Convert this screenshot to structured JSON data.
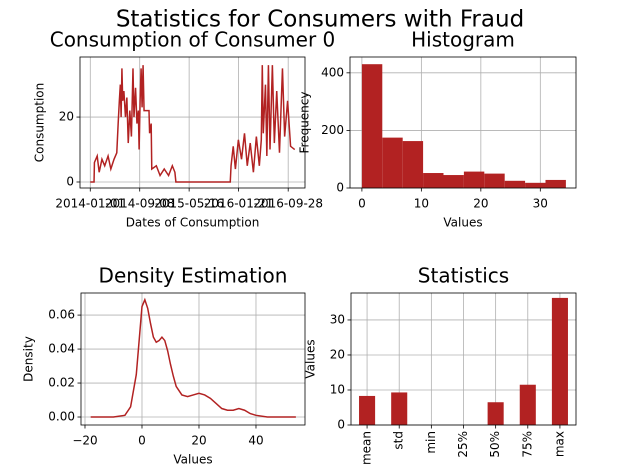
{
  "title": "Statistics for Consumers with Fraud",
  "chart_data": [
    {
      "type": "line",
      "title": "Consumption of Consumer 0",
      "x_label": "Dates of Consumption",
      "y_label": "Consumption",
      "color": "#b22222",
      "grid": true,
      "x": [
        "2014-01-01",
        "2014-01-20",
        "2014-01-22",
        "2014-02-05",
        "2014-02-15",
        "2014-03-01",
        "2014-03-15",
        "2014-04-01",
        "2014-04-15",
        "2014-05-01",
        "2014-05-15",
        "2014-05-22",
        "2014-05-28",
        "2014-06-02",
        "2014-06-06",
        "2014-06-10",
        "2014-06-14",
        "2014-06-20",
        "2014-06-28",
        "2014-07-05",
        "2014-07-12",
        "2014-07-20",
        "2014-07-28",
        "2014-08-05",
        "2014-08-10",
        "2014-08-18",
        "2014-08-25",
        "2014-09-01",
        "2014-09-05",
        "2014-09-10",
        "2014-09-15",
        "2014-09-20",
        "2014-09-25",
        "2014-09-30",
        "2014-10-15",
        "2014-10-25",
        "2014-10-28",
        "2014-11-05",
        "2014-11-08",
        "2014-12-01",
        "2014-12-20",
        "2015-01-10",
        "2015-02-01",
        "2015-02-20",
        "2015-03-05",
        "2015-03-10",
        "2015-12-10",
        "2015-12-14",
        "2015-12-25",
        "2016-01-05",
        "2016-01-20",
        "2016-02-05",
        "2016-02-20",
        "2016-03-05",
        "2016-03-20",
        "2016-04-05",
        "2016-04-20",
        "2016-05-05",
        "2016-05-15",
        "2016-05-20",
        "2016-05-25",
        "2016-06-05",
        "2016-06-12",
        "2016-06-20",
        "2016-06-28",
        "2016-07-10",
        "2016-07-20",
        "2016-08-01",
        "2016-08-15",
        "2016-08-30",
        "2016-09-10",
        "2016-09-25",
        "2016-10-10",
        "2016-10-31"
      ],
      "values": [
        0,
        0,
        6,
        8,
        3,
        7,
        5,
        8,
        4,
        7,
        9,
        18,
        25,
        30,
        20,
        35,
        25,
        28,
        20,
        26,
        12,
        22,
        14,
        35,
        20,
        29,
        18,
        22,
        10,
        25,
        35,
        23,
        36,
        22,
        22,
        22,
        15,
        18,
        4,
        5,
        2,
        4,
        2,
        5,
        3,
        0,
        0,
        5,
        11,
        4,
        13,
        7,
        15,
        5,
        12,
        3,
        14,
        5,
        13,
        36,
        15,
        30,
        8,
        36,
        10,
        36,
        12,
        28,
        9,
        35,
        14,
        25,
        11,
        10
      ],
      "xlim": [
        "2013-11-10",
        "2016-12-22"
      ],
      "xticks": [
        "2014-01-01",
        "2014-09-08",
        "2015-05-16",
        "2016-01-21",
        "2016-09-28"
      ],
      "ylim": [
        -1.85,
        38.5
      ],
      "yticks": [
        0,
        20
      ]
    },
    {
      "type": "histogram",
      "title": "Histogram",
      "x_label": "Values",
      "y_label": "Frequency",
      "color": "#b22222",
      "grid": true,
      "bins": [
        0,
        3.43,
        6.86,
        10.29,
        13.72,
        17.15,
        20.58,
        24.01,
        27.44,
        30.87,
        34.3
      ],
      "values": [
        430,
        175,
        163,
        52,
        45,
        57,
        50,
        25,
        18,
        28
      ],
      "xlim": [
        -2.0,
        36.0
      ],
      "xticks": [
        0,
        10,
        20,
        30
      ],
      "ylim": [
        0,
        455
      ],
      "yticks": [
        0,
        200,
        400
      ]
    },
    {
      "type": "line",
      "title": "Density Estimation",
      "x_label": "Values",
      "y_label": "Density",
      "color": "#b22222",
      "grid": true,
      "x": [
        -18,
        -10,
        -6,
        -4,
        -2,
        -1,
        0,
        1,
        2,
        3,
        4,
        5,
        6,
        7,
        8,
        9,
        10,
        11,
        12,
        14,
        16,
        18,
        20,
        22,
        24,
        26,
        28,
        30,
        32,
        34,
        36,
        38,
        40,
        44,
        48,
        54
      ],
      "values": [
        0,
        0,
        0.001,
        0.006,
        0.025,
        0.045,
        0.065,
        0.069,
        0.064,
        0.055,
        0.047,
        0.044,
        0.045,
        0.047,
        0.045,
        0.039,
        0.031,
        0.024,
        0.018,
        0.013,
        0.012,
        0.013,
        0.014,
        0.013,
        0.011,
        0.008,
        0.005,
        0.004,
        0.004,
        0.005,
        0.004,
        0.002,
        0.001,
        0,
        0,
        0
      ],
      "xlim": [
        -21.4,
        57.2
      ],
      "xticks": [
        {
          "value": -20,
          "label": "−20"
        },
        0,
        20,
        40
      ],
      "ylim": [
        -0.0047,
        0.073
      ],
      "yticks": [
        {
          "value": 0,
          "label": "0.00"
        },
        {
          "value": 0.02,
          "label": "0.02"
        },
        {
          "value": 0.04,
          "label": "0.04"
        },
        {
          "value": 0.06,
          "label": "0.06"
        }
      ]
    },
    {
      "type": "bar",
      "title": "Statistics",
      "y_label": "Values",
      "color": "#b22222",
      "grid": true,
      "categories": [
        "mean",
        "std",
        "min",
        "25%",
        "50%",
        "75%",
        "max"
      ],
      "values": [
        8.3,
        9.3,
        0,
        0,
        6.5,
        11.5,
        36.3
      ],
      "ylim": [
        0,
        37.7
      ],
      "yticks": [
        0,
        10,
        20,
        30
      ]
    }
  ]
}
